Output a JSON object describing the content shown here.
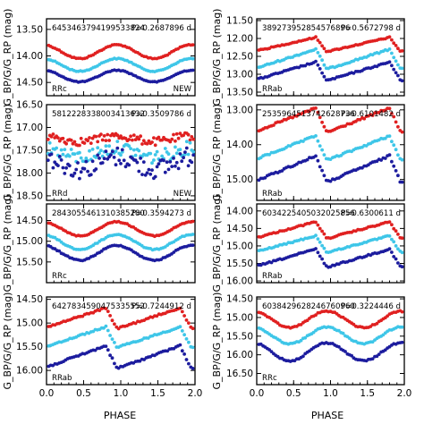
{
  "figure": {
    "xlabel": "PHASE",
    "ylabel": "G_BP/G/G_RP (mag)",
    "colors": {
      "bp": "#e02020",
      "g": "#3ec6e8",
      "rp": "#1c1c9e"
    }
  },
  "chart_data": [
    {
      "type": "scatter",
      "source_id": "6453463794199533824",
      "period_label": "P=0.2687896 d",
      "class_label": "RRc",
      "note": "NEW",
      "xlim": [
        0,
        2
      ],
      "ylim": [
        14.75,
        13.3
      ],
      "yticks": [
        13.5,
        14.0,
        14.5
      ],
      "series": [
        {
          "band": "G_BP",
          "mean": 13.92,
          "amp": 0.13,
          "shape": "sine"
        },
        {
          "band": "G",
          "mean": 14.17,
          "amp": 0.12,
          "shape": "sine"
        },
        {
          "band": "G_RP",
          "mean": 14.38,
          "amp": 0.11,
          "shape": "sine"
        }
      ]
    },
    {
      "type": "scatter",
      "source_id": "389273952854576896",
      "period_label": "P=0.5672798 d",
      "class_label": "RRab",
      "note": "",
      "xlim": [
        0,
        2
      ],
      "ylim": [
        13.6,
        11.45
      ],
      "yticks": [
        11.5,
        12.0,
        12.5,
        13.0,
        13.5
      ],
      "series": [
        {
          "band": "G_BP",
          "mean": 12.17,
          "amp": 0.2,
          "shape": "sawtooth"
        },
        {
          "band": "G",
          "mean": 12.58,
          "amp": 0.28,
          "shape": "sawtooth"
        },
        {
          "band": "G_RP",
          "mean": 12.92,
          "amp": 0.26,
          "shape": "sawtooth"
        }
      ]
    },
    {
      "type": "scatter",
      "source_id": "5812228338003413632",
      "period_label": "P=0.3509786 d",
      "class_label": "RRd",
      "note": "NEW",
      "xlim": [
        0,
        2
      ],
      "ylim": [
        18.6,
        16.5
      ],
      "yticks": [
        16.5,
        17.0,
        17.5,
        18.0,
        18.5
      ],
      "series": [
        {
          "band": "G_BP",
          "mean": 17.25,
          "amp": 0.06,
          "shape": "noisy"
        },
        {
          "band": "G",
          "mean": 17.55,
          "amp": 0.1,
          "shape": "noisy"
        },
        {
          "band": "G_RP",
          "mean": 17.78,
          "amp": 0.14,
          "shape": "noisy"
        }
      ]
    },
    {
      "type": "scatter",
      "source_id": "2535964513742628736",
      "period_label": "P=0.6101482 d",
      "class_label": "RRab",
      "note": "",
      "xlim": [
        0,
        2
      ],
      "ylim": [
        15.6,
        12.85
      ],
      "yticks": [
        13.0,
        14.0,
        15.0
      ],
      "series": [
        {
          "band": "G_BP",
          "mean": 13.3,
          "amp": 0.35,
          "shape": "sawtooth"
        },
        {
          "band": "G",
          "mean": 14.1,
          "amp": 0.35,
          "shape": "sawtooth"
        },
        {
          "band": "G_RP",
          "mean": 14.7,
          "amp": 0.38,
          "shape": "sawtooth"
        }
      ]
    },
    {
      "type": "scatter",
      "source_id": "2843055461310385280",
      "period_label": "P=0.3594273 d",
      "class_label": "RRc",
      "note": "",
      "xlim": [
        0,
        2
      ],
      "ylim": [
        16.0,
        14.1
      ],
      "yticks": [
        14.5,
        15.0,
        15.5
      ],
      "series": [
        {
          "band": "G_BP",
          "mean": 14.7,
          "amp": 0.17,
          "shape": "sine"
        },
        {
          "band": "G",
          "mean": 15.02,
          "amp": 0.18,
          "shape": "sine"
        },
        {
          "band": "G_RP",
          "mean": 15.28,
          "amp": 0.18,
          "shape": "sine"
        }
      ]
    },
    {
      "type": "scatter",
      "source_id": "6034225405032025856",
      "period_label": "P=0.6300611 d",
      "class_label": "RRab",
      "note": "",
      "xlim": [
        0,
        2
      ],
      "ylim": [
        16.05,
        13.8
      ],
      "yticks": [
        14.0,
        14.5,
        15.0,
        15.5,
        16.0
      ],
      "series": [
        {
          "band": "G_BP",
          "mean": 14.55,
          "amp": 0.24,
          "shape": "sawtooth"
        },
        {
          "band": "G",
          "mean": 14.95,
          "amp": 0.24,
          "shape": "sawtooth"
        },
        {
          "band": "G_RP",
          "mean": 15.35,
          "amp": 0.26,
          "shape": "sawtooth"
        }
      ]
    },
    {
      "type": "scatter",
      "source_id": "6427834590475335552",
      "period_label": "P=0.7244912 d",
      "class_label": "RRab",
      "note": "",
      "xlim": [
        0,
        2
      ],
      "ylim": [
        16.3,
        14.45
      ],
      "yticks": [
        14.5,
        15.0,
        15.5,
        16.0
      ],
      "series": [
        {
          "band": "G_BP",
          "mean": 14.9,
          "amp": 0.22,
          "shape": "sawtooth"
        },
        {
          "band": "G",
          "mean": 15.3,
          "amp": 0.22,
          "shape": "sawtooth"
        },
        {
          "band": "G_RP",
          "mean": 15.72,
          "amp": 0.24,
          "shape": "sawtooth"
        }
      ]
    },
    {
      "type": "scatter",
      "source_id": "6038429628246760960",
      "period_label": "P=0.3224446 d",
      "class_label": "RRc",
      "note": "",
      "xlim": [
        0,
        2
      ],
      "ylim": [
        16.8,
        14.45
      ],
      "yticks": [
        14.5,
        15.0,
        15.5,
        16.0,
        16.5
      ],
      "series": [
        {
          "band": "G_BP",
          "mean": 15.05,
          "amp": 0.22,
          "shape": "sine"
        },
        {
          "band": "G",
          "mean": 15.48,
          "amp": 0.22,
          "shape": "sine"
        },
        {
          "band": "G_RP",
          "mean": 15.92,
          "amp": 0.24,
          "shape": "sine"
        }
      ]
    }
  ],
  "xaxis": {
    "ticks": [
      "0.0",
      "0.5",
      "1.0",
      "1.5",
      "2.0"
    ]
  }
}
